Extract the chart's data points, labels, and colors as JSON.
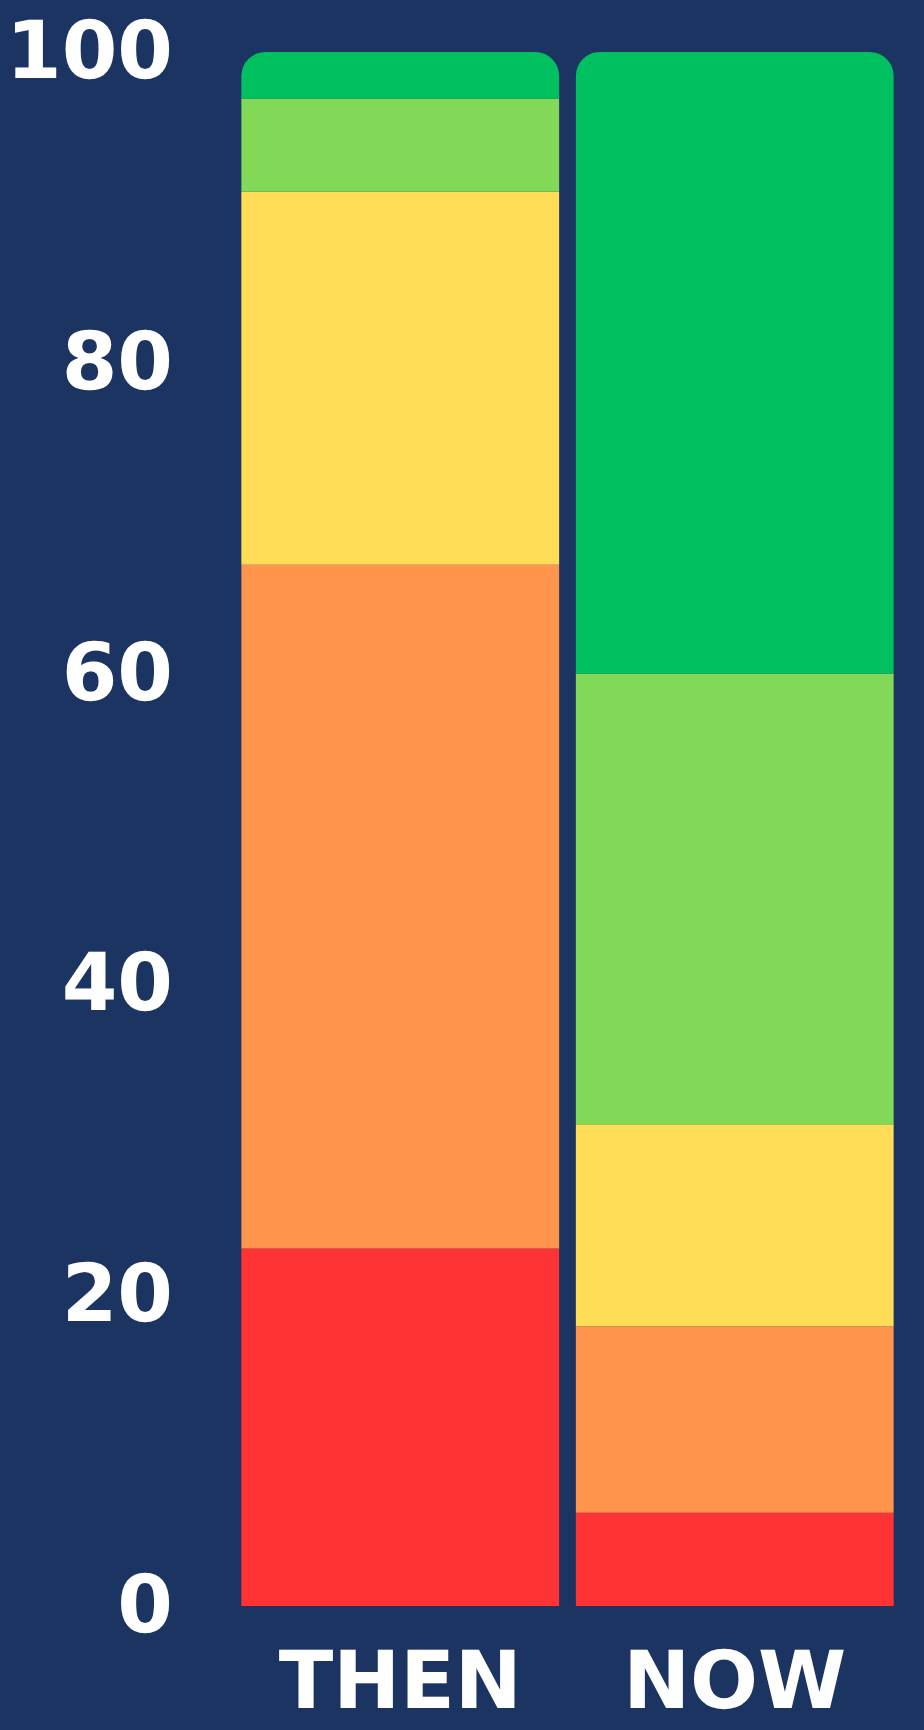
{
  "chart_data": {
    "type": "bar",
    "stacked": true,
    "categories": [
      "THEN",
      "NOW"
    ],
    "series": [
      {
        "color": "#ff3333",
        "values": [
          23,
          6
        ]
      },
      {
        "color": "#ff944d",
        "values": [
          44,
          12
        ]
      },
      {
        "color": "#ffdd57",
        "values": [
          24,
          13
        ]
      },
      {
        "color": "#82d957",
        "values": [
          6,
          29
        ]
      },
      {
        "color": "#00c060",
        "values": [
          3,
          40
        ]
      }
    ],
    "ylim": [
      0,
      100
    ],
    "yticks": [
      0,
      20,
      40,
      60,
      80,
      100
    ],
    "grid": false
  }
}
